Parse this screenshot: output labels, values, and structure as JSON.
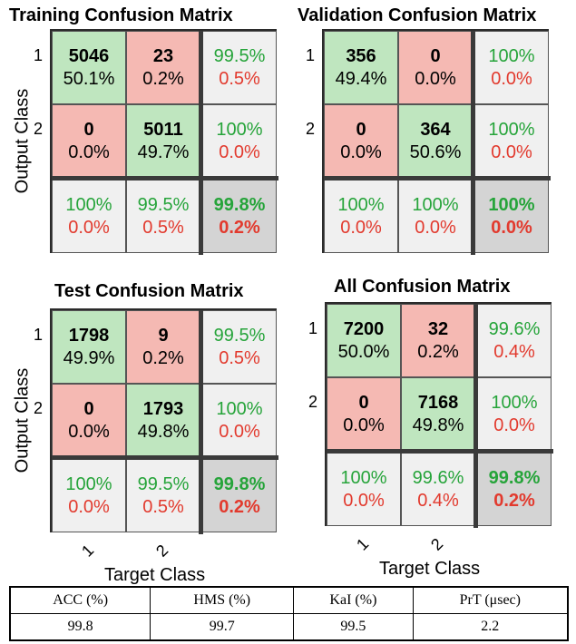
{
  "chart_data": [
    {
      "type": "table",
      "title": "Training Confusion Matrix",
      "ylabel": "Output Class",
      "xlabel": "",
      "row_ticks": [
        "1",
        "2"
      ],
      "col_ticks": [],
      "cells": [
        [
          {
            "count": "5046",
            "pct": "50.1%"
          },
          {
            "count": "23",
            "pct": "0.2%"
          },
          {
            "good": "99.5%",
            "bad": "0.5%"
          }
        ],
        [
          {
            "count": "0",
            "pct": "0.0%"
          },
          {
            "count": "5011",
            "pct": "49.7%"
          },
          {
            "good": "100%",
            "bad": "0.0%"
          }
        ],
        [
          {
            "good": "100%",
            "bad": "0.0%"
          },
          {
            "good": "99.5%",
            "bad": "0.5%"
          },
          {
            "good": "99.8%",
            "bad": "0.2%"
          }
        ]
      ]
    },
    {
      "type": "table",
      "title": "Validation Confusion Matrix",
      "ylabel": "",
      "xlabel": "",
      "row_ticks": [
        "1",
        "2"
      ],
      "col_ticks": [],
      "cells": [
        [
          {
            "count": "356",
            "pct": "49.4%"
          },
          {
            "count": "0",
            "pct": "0.0%"
          },
          {
            "good": "100%",
            "bad": "0.0%"
          }
        ],
        [
          {
            "count": "0",
            "pct": "0.0%"
          },
          {
            "count": "364",
            "pct": "50.6%"
          },
          {
            "good": "100%",
            "bad": "0.0%"
          }
        ],
        [
          {
            "good": "100%",
            "bad": "0.0%"
          },
          {
            "good": "100%",
            "bad": "0.0%"
          },
          {
            "good": "100%",
            "bad": "0.0%"
          }
        ]
      ]
    },
    {
      "type": "table",
      "title": "Test Confusion Matrix",
      "ylabel": "Output Class",
      "xlabel": "Target Class",
      "row_ticks": [
        "1",
        "2"
      ],
      "col_ticks": [
        "1",
        "2"
      ],
      "cells": [
        [
          {
            "count": "1798",
            "pct": "49.9%"
          },
          {
            "count": "9",
            "pct": "0.2%"
          },
          {
            "good": "99.5%",
            "bad": "0.5%"
          }
        ],
        [
          {
            "count": "0",
            "pct": "0.0%"
          },
          {
            "count": "1793",
            "pct": "49.8%"
          },
          {
            "good": "100%",
            "bad": "0.0%"
          }
        ],
        [
          {
            "good": "100%",
            "bad": "0.0%"
          },
          {
            "good": "99.5%",
            "bad": "0.5%"
          },
          {
            "good": "99.8%",
            "bad": "0.2%"
          }
        ]
      ]
    },
    {
      "type": "table",
      "title": "All Confusion Matrix",
      "ylabel": "",
      "xlabel": "Target Class",
      "row_ticks": [
        "1",
        "2"
      ],
      "col_ticks": [
        "1",
        "2"
      ],
      "cells": [
        [
          {
            "count": "7200",
            "pct": "50.0%"
          },
          {
            "count": "32",
            "pct": "0.2%"
          },
          {
            "good": "99.6%",
            "bad": "0.4%"
          }
        ],
        [
          {
            "count": "0",
            "pct": "0.0%"
          },
          {
            "count": "7168",
            "pct": "49.8%"
          },
          {
            "good": "100%",
            "bad": "0.0%"
          }
        ],
        [
          {
            "good": "100%",
            "bad": "0.0%"
          },
          {
            "good": "99.6%",
            "bad": "0.4%"
          },
          {
            "good": "99.8%",
            "bad": "0.2%"
          }
        ]
      ]
    }
  ],
  "metrics_table": {
    "headers": [
      "ACC (%)",
      "HMS (%)",
      "KaI (%)",
      "PrT (μsec)"
    ],
    "values": [
      "99.8",
      "99.7",
      "99.5",
      "2.2"
    ]
  },
  "colors": {
    "correct_cell": "#bfe6bf",
    "error_cell": "#f5b9b3",
    "stat_cell": "#f0f0f0",
    "total_cell": "#d4d4d4",
    "good_text": "#26a43a",
    "bad_text": "#e23a2e"
  }
}
